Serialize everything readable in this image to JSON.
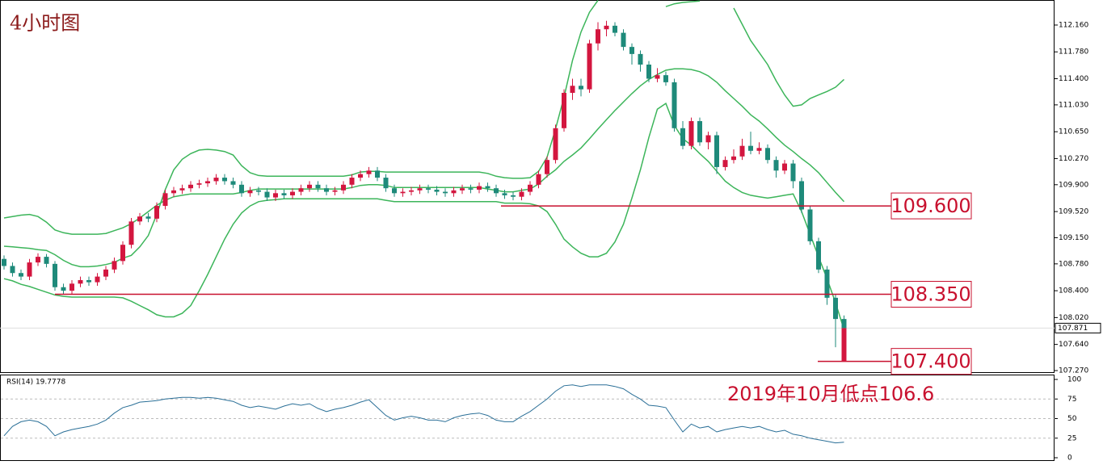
{
  "chart_data": {
    "type": "candlestick",
    "title": "4小时图",
    "up_color": "#d3163f",
    "down_color": "#1e8a7a",
    "ylim": [
      107.236,
      112.514
    ],
    "yticks": [
      {
        "value": 107.27,
        "label": "107.270"
      },
      {
        "value": 107.64,
        "label": "107.640"
      },
      {
        "value": 108.02,
        "label": "108.020"
      },
      {
        "value": 108.4,
        "label": "108.400"
      },
      {
        "value": 108.78,
        "label": "108.780"
      },
      {
        "value": 109.15,
        "label": "109.150"
      },
      {
        "value": 109.52,
        "label": "109.520"
      },
      {
        "value": 109.9,
        "label": "109.900"
      },
      {
        "value": 110.27,
        "label": "110.270"
      },
      {
        "value": 110.65,
        "label": "110.650"
      },
      {
        "value": 111.03,
        "label": "111.030"
      },
      {
        "value": 111.4,
        "label": "111.400"
      },
      {
        "value": 111.78,
        "label": "111.780"
      },
      {
        "value": 112.16,
        "label": "112.160"
      }
    ],
    "price_label": {
      "value": 107.871,
      "label": "107.871"
    },
    "candles": [
      [
        108.85,
        108.9,
        108.7,
        108.75
      ],
      [
        108.75,
        108.8,
        108.6,
        108.65
      ],
      [
        108.65,
        108.7,
        108.55,
        108.6
      ],
      [
        108.6,
        108.85,
        108.55,
        108.8
      ],
      [
        108.8,
        108.93,
        108.75,
        108.88
      ],
      [
        108.88,
        108.92,
        108.73,
        108.78
      ],
      [
        108.78,
        108.82,
        108.4,
        108.45
      ],
      [
        108.45,
        108.5,
        108.35,
        108.4
      ],
      [
        108.4,
        108.55,
        108.35,
        108.5
      ],
      [
        108.5,
        108.6,
        108.45,
        108.55
      ],
      [
        108.55,
        108.6,
        108.47,
        108.52
      ],
      [
        108.52,
        108.65,
        108.47,
        108.6
      ],
      [
        108.6,
        108.75,
        108.55,
        108.7
      ],
      [
        108.7,
        108.87,
        108.65,
        108.82
      ],
      [
        108.82,
        109.1,
        108.77,
        109.05
      ],
      [
        109.05,
        109.43,
        109.0,
        109.38
      ],
      [
        109.38,
        109.5,
        109.33,
        109.45
      ],
      [
        109.45,
        109.5,
        109.37,
        109.42
      ],
      [
        109.42,
        109.65,
        109.37,
        109.6
      ],
      [
        109.6,
        109.83,
        109.55,
        109.78
      ],
      [
        109.78,
        109.87,
        109.73,
        109.82
      ],
      [
        109.82,
        109.9,
        109.77,
        109.85
      ],
      [
        109.85,
        109.95,
        109.8,
        109.9
      ],
      [
        109.9,
        109.97,
        109.85,
        109.92
      ],
      [
        109.92,
        110.0,
        109.87,
        109.95
      ],
      [
        109.95,
        110.05,
        109.9,
        110.0
      ],
      [
        110.0,
        110.05,
        109.9,
        109.95
      ],
      [
        109.95,
        110.0,
        109.85,
        109.9
      ],
      [
        109.9,
        109.95,
        109.73,
        109.78
      ],
      [
        109.78,
        109.87,
        109.73,
        109.82
      ],
      [
        109.82,
        109.87,
        109.75,
        109.8
      ],
      [
        109.8,
        109.85,
        109.67,
        109.72
      ],
      [
        109.72,
        109.83,
        109.67,
        109.78
      ],
      [
        109.78,
        109.83,
        109.7,
        109.75
      ],
      [
        109.75,
        109.85,
        109.7,
        109.8
      ],
      [
        109.8,
        109.9,
        109.75,
        109.85
      ],
      [
        109.85,
        109.95,
        109.8,
        109.9
      ],
      [
        109.9,
        109.95,
        109.8,
        109.85
      ],
      [
        109.85,
        109.9,
        109.75,
        109.8
      ],
      [
        109.8,
        109.87,
        109.75,
        109.82
      ],
      [
        109.82,
        109.95,
        109.77,
        109.9
      ],
      [
        109.9,
        110.05,
        109.85,
        110.0
      ],
      [
        110.0,
        110.1,
        109.95,
        110.05
      ],
      [
        110.05,
        110.15,
        110.0,
        110.1
      ],
      [
        110.1,
        110.15,
        109.95,
        110.0
      ],
      [
        110.0,
        110.05,
        109.8,
        109.85
      ],
      [
        109.85,
        109.9,
        109.73,
        109.78
      ],
      [
        109.78,
        109.85,
        109.73,
        109.8
      ],
      [
        109.8,
        109.87,
        109.75,
        109.82
      ],
      [
        109.82,
        109.9,
        109.77,
        109.85
      ],
      [
        109.85,
        109.9,
        109.78,
        109.83
      ],
      [
        109.83,
        109.88,
        109.75,
        109.8
      ],
      [
        109.8,
        109.85,
        109.73,
        109.78
      ],
      [
        109.78,
        109.87,
        109.73,
        109.82
      ],
      [
        109.82,
        109.9,
        109.77,
        109.85
      ],
      [
        109.85,
        109.9,
        109.78,
        109.83
      ],
      [
        109.83,
        109.93,
        109.78,
        109.88
      ],
      [
        109.88,
        109.93,
        109.8,
        109.85
      ],
      [
        109.85,
        109.9,
        109.73,
        109.78
      ],
      [
        109.78,
        109.83,
        109.7,
        109.75
      ],
      [
        109.75,
        109.8,
        109.68,
        109.73
      ],
      [
        109.73,
        109.85,
        109.68,
        109.8
      ],
      [
        109.8,
        109.95,
        109.75,
        109.9
      ],
      [
        109.9,
        110.1,
        109.85,
        110.05
      ],
      [
        110.05,
        110.3,
        110.0,
        110.25
      ],
      [
        110.25,
        110.75,
        110.2,
        110.7
      ],
      [
        110.7,
        111.25,
        110.65,
        111.2
      ],
      [
        111.2,
        111.4,
        111.1,
        111.3
      ],
      [
        111.3,
        111.4,
        111.15,
        111.25
      ],
      [
        111.25,
        111.95,
        111.2,
        111.9
      ],
      [
        111.9,
        112.2,
        111.8,
        112.1
      ],
      [
        112.1,
        112.22,
        112.0,
        112.15
      ],
      [
        112.15,
        112.2,
        112.0,
        112.05
      ],
      [
        112.05,
        112.1,
        111.8,
        111.85
      ],
      [
        111.85,
        111.9,
        111.6,
        111.75
      ],
      [
        111.75,
        111.8,
        111.5,
        111.6
      ],
      [
        111.6,
        111.65,
        111.35,
        111.4
      ],
      [
        111.4,
        111.55,
        111.35,
        111.45
      ],
      [
        111.45,
        111.5,
        111.3,
        111.35
      ],
      [
        111.35,
        111.4,
        110.65,
        110.7
      ],
      [
        110.7,
        110.8,
        110.4,
        110.45
      ],
      [
        110.45,
        110.85,
        110.4,
        110.8
      ],
      [
        110.8,
        110.85,
        110.45,
        110.5
      ],
      [
        110.5,
        110.65,
        110.4,
        110.6
      ],
      [
        110.6,
        110.65,
        110.05,
        110.15
      ],
      [
        110.15,
        110.3,
        110.1,
        110.25
      ],
      [
        110.25,
        110.4,
        110.2,
        110.3
      ],
      [
        110.3,
        110.55,
        110.25,
        110.45
      ],
      [
        110.45,
        110.65,
        110.33,
        110.38
      ],
      [
        110.38,
        110.5,
        110.33,
        110.42
      ],
      [
        110.42,
        110.47,
        110.2,
        110.25
      ],
      [
        110.25,
        110.3,
        110.0,
        110.1
      ],
      [
        110.1,
        110.25,
        110.05,
        110.2
      ],
      [
        110.2,
        110.25,
        109.85,
        109.95
      ],
      [
        109.95,
        110.0,
        109.5,
        109.55
      ],
      [
        109.55,
        109.6,
        109.05,
        109.1
      ],
      [
        109.1,
        109.15,
        108.65,
        108.7
      ],
      [
        108.7,
        108.75,
        108.2,
        108.3
      ],
      [
        108.3,
        108.35,
        107.6,
        108.0
      ],
      [
        108.0,
        108.05,
        107.83,
        107.871
      ]
    ],
    "bands": {
      "color": "#3cb55a",
      "upper": [
        109.03,
        109.02,
        109.01,
        109.0,
        108.98,
        108.97,
        108.91,
        108.83,
        108.77,
        108.74,
        108.74,
        108.75,
        108.77,
        108.8,
        108.86,
        108.9,
        109.02,
        109.18,
        109.48,
        109.83,
        110.11,
        110.26,
        110.34,
        110.39,
        110.4,
        110.39,
        110.37,
        110.32,
        110.17,
        110.07,
        110.03,
        110.02,
        110.02,
        110.02,
        110.02,
        110.02,
        110.02,
        110.02,
        110.02,
        110.02,
        110.02,
        110.04,
        110.08,
        110.09,
        110.09,
        110.08,
        110.08,
        110.08,
        110.08,
        110.08,
        110.08,
        110.08,
        110.08,
        110.08,
        110.08,
        110.08,
        110.08,
        110.06,
        110.02,
        110.0,
        109.99,
        109.99,
        110.0,
        110.09,
        110.29,
        110.69,
        111.14,
        111.66,
        112.06,
        112.34,
        112.51,
        null,
        null,
        null,
        null,
        null,
        null,
        null,
        112.42,
        112.46,
        112.48,
        112.49,
        112.5,
        null,
        null,
        null,
        112.4,
        112.17,
        111.94,
        111.77,
        111.6,
        111.37,
        111.17,
        111.01,
        111.03,
        111.12,
        111.17,
        111.22,
        111.28,
        111.39
      ],
      "middle": [
        109.43,
        109.45,
        109.47,
        109.48,
        109.45,
        109.37,
        109.26,
        109.22,
        109.2,
        109.2,
        109.2,
        109.2,
        109.21,
        109.25,
        109.29,
        109.35,
        109.43,
        109.52,
        109.61,
        109.68,
        109.73,
        109.75,
        109.77,
        109.77,
        109.77,
        109.77,
        109.77,
        109.77,
        109.79,
        109.82,
        109.84,
        109.84,
        109.84,
        109.84,
        109.84,
        109.84,
        109.84,
        109.84,
        109.84,
        109.84,
        109.84,
        109.86,
        109.89,
        109.9,
        109.9,
        109.89,
        109.86,
        109.86,
        109.86,
        109.86,
        109.86,
        109.86,
        109.86,
        109.86,
        109.86,
        109.86,
        109.86,
        109.84,
        109.82,
        109.8,
        109.8,
        109.82,
        109.84,
        109.91,
        110.02,
        110.11,
        110.23,
        110.32,
        110.42,
        110.55,
        110.69,
        110.82,
        110.95,
        111.07,
        111.19,
        111.3,
        111.39,
        111.46,
        111.52,
        111.54,
        111.54,
        111.53,
        111.5,
        111.44,
        111.35,
        111.23,
        111.12,
        111.01,
        110.89,
        110.8,
        110.69,
        110.57,
        110.46,
        110.37,
        110.27,
        110.18,
        110.07,
        109.93,
        109.79,
        109.66
      ],
      "lower": [
        108.57,
        108.54,
        108.49,
        108.46,
        108.42,
        108.38,
        108.34,
        108.32,
        108.31,
        108.31,
        108.31,
        108.31,
        108.31,
        108.31,
        108.3,
        108.25,
        108.19,
        108.13,
        108.06,
        108.03,
        108.03,
        108.08,
        108.19,
        108.4,
        108.63,
        108.88,
        109.13,
        109.34,
        109.5,
        109.6,
        109.66,
        109.68,
        109.69,
        109.7,
        109.7,
        109.7,
        109.7,
        109.7,
        109.7,
        109.7,
        109.7,
        109.7,
        109.7,
        109.7,
        109.7,
        109.68,
        109.66,
        109.66,
        109.66,
        109.66,
        109.66,
        109.66,
        109.66,
        109.66,
        109.66,
        109.66,
        109.66,
        109.66,
        109.66,
        109.64,
        109.64,
        109.64,
        109.63,
        109.6,
        109.52,
        109.34,
        109.13,
        109.02,
        108.93,
        108.88,
        108.88,
        108.93,
        109.09,
        109.34,
        109.71,
        110.11,
        110.57,
        110.97,
        111.05,
        110.74,
        110.55,
        110.46,
        110.34,
        110.23,
        110.09,
        109.95,
        109.86,
        109.79,
        109.75,
        109.73,
        109.71,
        109.73,
        109.75,
        109.77,
        109.52,
        109.2,
        108.88,
        108.57,
        108.23,
        107.85
      ]
    },
    "level_color": "#c8102e",
    "levels": [
      {
        "value": 109.6,
        "label": "109.600"
      },
      {
        "value": 108.35,
        "label": "108.350"
      },
      {
        "value": 107.4,
        "label": "107.400"
      }
    ],
    "annotation": "2019年10月低点106.6",
    "rsi": {
      "type": "line",
      "title": "RSI(14) 19.7778",
      "color": "#2a6f97",
      "ylim": [
        0,
        100
      ],
      "yticks": [
        0,
        25,
        50,
        75,
        100
      ],
      "values": [
        28,
        40,
        46,
        48,
        46,
        40,
        28,
        33,
        36,
        38,
        40,
        43,
        48,
        57,
        64,
        67,
        71,
        72,
        73,
        75,
        76,
        77,
        77,
        76,
        77,
        76,
        74,
        72,
        67,
        64,
        66,
        64,
        62,
        66,
        69,
        67,
        69,
        63,
        59,
        62,
        64,
        67,
        71,
        74,
        64,
        54,
        48,
        51,
        53,
        51,
        48,
        48,
        46,
        51,
        54,
        56,
        57,
        54,
        48,
        46,
        46,
        53,
        59,
        67,
        75,
        85,
        92,
        93,
        91,
        93,
        93,
        93,
        91,
        88,
        81,
        75,
        67,
        66,
        64,
        48,
        33,
        43,
        38,
        40,
        33,
        36,
        38,
        40,
        38,
        40,
        36,
        33,
        35,
        30,
        28,
        25,
        23,
        21,
        19,
        19.7778
      ]
    }
  }
}
